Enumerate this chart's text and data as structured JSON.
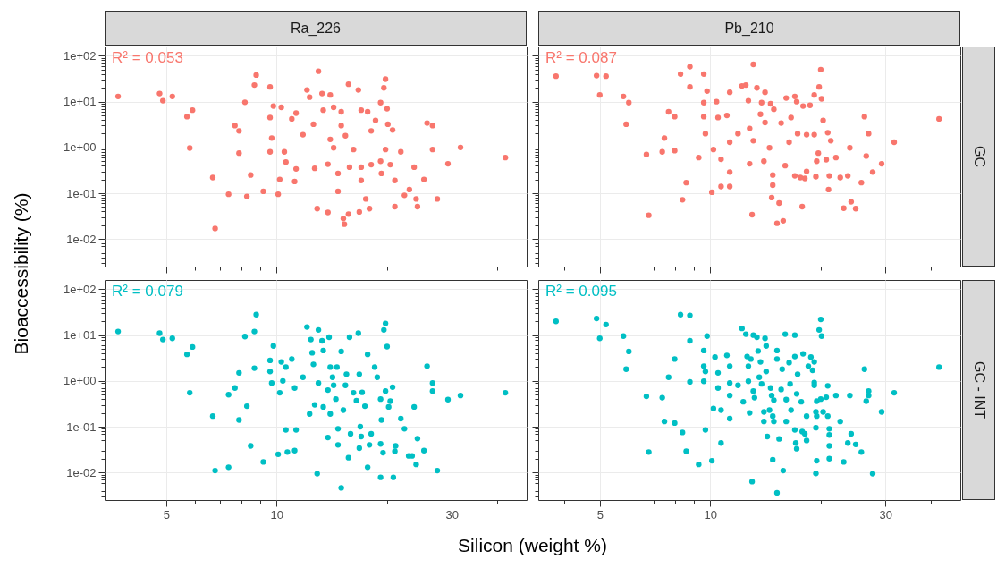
{
  "chart_data": [
    {
      "type": "scatter",
      "title": "Ra_226",
      "ylabel": "Bioaccessibility (%)",
      "annotations": [
        "R² = 0.053"
      ],
      "color": "#f8766d",
      "marker": "circle",
      "log": "xy",
      "grid": true,
      "tick_labels": "y",
      "xlim": [
        3.4,
        48
      ],
      "ylim": [
        0.0025,
        160
      ],
      "xticks": [
        {
          "value": 4,
          "label": null
        },
        5,
        {
          "value": 6,
          "label": null
        },
        {
          "value": 7,
          "label": null
        },
        {
          "value": 8,
          "label": null
        },
        {
          "value": 9,
          "label": null
        },
        10,
        {
          "value": 20,
          "label": null
        },
        30,
        {
          "value": 40,
          "label": null
        }
      ],
      "yticks": [
        {
          "value": 0.003,
          "label": null
        },
        {
          "value": 0.004,
          "label": null
        },
        {
          "value": 0.005,
          "label": null
        },
        {
          "value": 0.006,
          "label": null
        },
        {
          "value": 0.007,
          "label": null
        },
        {
          "value": 0.008,
          "label": null
        },
        {
          "value": 0.009,
          "label": null
        },
        {
          "value": 0.01,
          "label": "1e-02"
        },
        {
          "value": 0.02,
          "label": null
        },
        {
          "value": 0.03,
          "label": null
        },
        {
          "value": 0.04,
          "label": null
        },
        {
          "value": 0.05,
          "label": null
        },
        {
          "value": 0.06,
          "label": null
        },
        {
          "value": 0.07,
          "label": null
        },
        {
          "value": 0.08,
          "label": null
        },
        {
          "value": 0.09,
          "label": null
        },
        {
          "value": 0.1,
          "label": "1e-01"
        },
        {
          "value": 0.2,
          "label": null
        },
        {
          "value": 0.3,
          "label": null
        },
        {
          "value": 0.4,
          "label": null
        },
        {
          "value": 0.5,
          "label": null
        },
        {
          "value": 0.6,
          "label": null
        },
        {
          "value": 0.7,
          "label": null
        },
        {
          "value": 0.8,
          "label": null
        },
        {
          "value": 0.9,
          "label": null
        },
        {
          "value": 1,
          "label": "1e+00"
        },
        {
          "value": 2,
          "label": null
        },
        {
          "value": 3,
          "label": null
        },
        {
          "value": 4,
          "label": null
        },
        {
          "value": 5,
          "label": null
        },
        {
          "value": 6,
          "label": null
        },
        {
          "value": 7,
          "label": null
        },
        {
          "value": 8,
          "label": null
        },
        {
          "value": 9,
          "label": null
        },
        {
          "value": 10,
          "label": "1e+01"
        },
        {
          "value": 20,
          "label": null
        },
        {
          "value": 30,
          "label": null
        },
        {
          "value": 40,
          "label": null
        },
        {
          "value": 50,
          "label": null
        },
        {
          "value": 60,
          "label": null
        },
        {
          "value": 70,
          "label": null
        },
        {
          "value": 80,
          "label": null
        },
        {
          "value": 90,
          "label": null
        },
        {
          "value": 100,
          "label": "1e+02"
        }
      ],
      "x": [
        3.7,
        4.8,
        4.9,
        5.2,
        5.7,
        5.9,
        5.8,
        6.7,
        6.8,
        7.4,
        7.7,
        7.9,
        7.9,
        8.2,
        8.3,
        8.5,
        8.7,
        8.8,
        9.2,
        9.6,
        9.6,
        9.6,
        9.7,
        9.8,
        10.1,
        10.2,
        10.3,
        10.5,
        10.6,
        11.0,
        11.2,
        11.3,
        11.3,
        11.8,
        12.1,
        12.3,
        12.6,
        12.7,
        12.9,
        13.0,
        13.3,
        13.4,
        13.8,
        13.8,
        14.0,
        14.0,
        14.3,
        14.3,
        14.7,
        14.7,
        15.0,
        15.0,
        15.2,
        15.3,
        15.4,
        15.7,
        15.7,
        15.8,
        16.2,
        16.7,
        16.8,
        17.0,
        17.0,
        17.0,
        17.5,
        17.7,
        17.9,
        18.1,
        18.1,
        18.6,
        19.2,
        19.2,
        19.3,
        19.6,
        19.8,
        19.8,
        20.0,
        20.1,
        20.4,
        20.7,
        21,
        21,
        21.8,
        22.3,
        23.0,
        23.7,
        24,
        24.2,
        25.2,
        25.7,
        26.6,
        26.6,
        27.4,
        29.3,
        31.7,
        42
      ],
      "values": [
        13,
        15,
        10.5,
        13,
        4.7,
        6.5,
        0.97,
        0.22,
        0.017,
        0.095,
        3.0,
        2.3,
        0.75,
        9.7,
        0.085,
        0.25,
        23,
        38,
        0.11,
        21,
        4.5,
        0.8,
        1.6,
        8,
        0.095,
        0.2,
        7.5,
        0.8,
        0.48,
        4.2,
        0.18,
        5.6,
        0.34,
        1.9,
        18,
        12.5,
        3.2,
        0.35,
        0.046,
        46,
        15,
        6.5,
        0.43,
        0.038,
        14,
        1.5,
        7.5,
        0.98,
        0.11,
        0.27,
        6,
        3.0,
        0.028,
        0.021,
        1.8,
        0.035,
        24,
        0.37,
        0.9,
        18,
        0.039,
        6.5,
        0.37,
        0.19,
        0.075,
        6,
        0.046,
        2.3,
        0.42,
        3.9,
        9.5,
        0.5,
        0.27,
        20,
        31,
        0.9,
        7,
        3.2,
        0.42,
        2.4,
        0.051,
        0.19,
        0.8,
        0.09,
        0.12,
        0.37,
        0.075,
        0.051,
        0.2,
        3.4,
        3.0,
        0.9,
        0.075,
        0.44,
        1.0,
        0.6
      ]
    },
    {
      "type": "scatter",
      "title": "Pb_210",
      "y2label": "GC",
      "annotations": [
        "R² = 0.087"
      ],
      "color": "#f8766d",
      "marker": "circle",
      "log": "xy",
      "grid": true,
      "tick_labels": false,
      "xlim": [
        3.4,
        48
      ],
      "ylim": [
        0.0025,
        160
      ],
      "xticks": [
        {
          "value": 4,
          "label": null
        },
        5,
        {
          "value": 6,
          "label": null
        },
        {
          "value": 7,
          "label": null
        },
        {
          "value": 8,
          "label": null
        },
        {
          "value": 9,
          "label": null
        },
        10,
        {
          "value": 20,
          "label": null
        },
        30,
        {
          "value": 40,
          "label": null
        }
      ],
      "yticks": [
        {
          "value": 0.003,
          "label": null
        },
        {
          "value": 0.004,
          "label": null
        },
        {
          "value": 0.005,
          "label": null
        },
        {
          "value": 0.006,
          "label": null
        },
        {
          "value": 0.007,
          "label": null
        },
        {
          "value": 0.008,
          "label": null
        },
        {
          "value": 0.009,
          "label": null
        },
        0.01,
        {
          "value": 0.02,
          "label": null
        },
        {
          "value": 0.03,
          "label": null
        },
        {
          "value": 0.04,
          "label": null
        },
        {
          "value": 0.05,
          "label": null
        },
        {
          "value": 0.06,
          "label": null
        },
        {
          "value": 0.07,
          "label": null
        },
        {
          "value": 0.08,
          "label": null
        },
        {
          "value": 0.09,
          "label": null
        },
        0.1,
        {
          "value": 0.2,
          "label": null
        },
        {
          "value": 0.3,
          "label": null
        },
        {
          "value": 0.4,
          "label": null
        },
        {
          "value": 0.5,
          "label": null
        },
        {
          "value": 0.6,
          "label": null
        },
        {
          "value": 0.7,
          "label": null
        },
        {
          "value": 0.8,
          "label": null
        },
        {
          "value": 0.9,
          "label": null
        },
        1,
        {
          "value": 2,
          "label": null
        },
        {
          "value": 3,
          "label": null
        },
        {
          "value": 4,
          "label": null
        },
        {
          "value": 5,
          "label": null
        },
        {
          "value": 6,
          "label": null
        },
        {
          "value": 7,
          "label": null
        },
        {
          "value": 8,
          "label": null
        },
        {
          "value": 9,
          "label": null
        },
        10,
        {
          "value": 20,
          "label": null
        },
        {
          "value": 30,
          "label": null
        },
        {
          "value": 40,
          "label": null
        },
        {
          "value": 50,
          "label": null
        },
        {
          "value": 60,
          "label": null
        },
        {
          "value": 70,
          "label": null
        },
        {
          "value": 80,
          "label": null
        },
        {
          "value": 90,
          "label": null
        },
        100
      ],
      "x": [
        3.8,
        4.9,
        5.0,
        5.2,
        5.8,
        6.0,
        5.9,
        6.7,
        6.8,
        7.4,
        7.5,
        7.7,
        8.0,
        8.0,
        8.3,
        8.4,
        8.6,
        8.8,
        8.8,
        9.3,
        9.6,
        9.6,
        9.6,
        9.7,
        9.8,
        10.1,
        10.2,
        10.4,
        10.5,
        10.7,
        10.7,
        11.1,
        11.3,
        11.3,
        11.3,
        11.3,
        11.9,
        12.2,
        12.5,
        12.7,
        12.8,
        12.8,
        13.0,
        13.1,
        13.1,
        13.4,
        13.7,
        13.8,
        14.0,
        14.1,
        14.1,
        14.5,
        14.6,
        14.7,
        14.8,
        14.8,
        14.9,
        15.2,
        15.4,
        15.6,
        15.8,
        16.0,
        16.1,
        16.4,
        16.6,
        17.0,
        17.0,
        17.2,
        17.3,
        17.6,
        17.8,
        17.9,
        18.1,
        18.3,
        18.3,
        18.7,
        19.2,
        19.2,
        19.4,
        19.5,
        19.7,
        19.8,
        20.0,
        20.1,
        20.3,
        20.7,
        20.9,
        21,
        21.1,
        21.3,
        22,
        22.6,
        23.1,
        23.7,
        24,
        24.2,
        24.9,
        25.8,
        26.3,
        26.6,
        27,
        27.7,
        29.3,
        31.7,
        42
      ],
      "values": [
        36,
        37,
        14,
        36,
        13,
        9.5,
        3.2,
        0.7,
        0.033,
        0.8,
        1.6,
        6,
        4.7,
        0.85,
        40,
        0.072,
        0.17,
        58,
        21,
        0.6,
        40,
        9.5,
        4.7,
        2.0,
        17,
        0.105,
        0.9,
        10,
        4.5,
        0.55,
        0.14,
        5,
        1.3,
        16,
        0.29,
        0.14,
        2.0,
        22,
        23,
        10.5,
        0.44,
        2.6,
        0.034,
        65,
        1.4,
        20,
        5.3,
        9.5,
        0.5,
        16,
        3.5,
        0.98,
        9,
        0.08,
        0.25,
        0.15,
        6.8,
        0.022,
        0.061,
        3.4,
        0.025,
        0.4,
        12,
        1.3,
        4.5,
        0.24,
        13,
        10,
        2.0,
        0.22,
        0.051,
        8,
        0.21,
        0.3,
        1.9,
        8.3,
        14,
        1.9,
        0.23,
        0.5,
        0.75,
        21,
        50,
        11.5,
        3.9,
        0.54,
        2.1,
        0.12,
        0.24,
        1.4,
        0.6,
        0.22,
        0.047,
        0.24,
        0.98,
        0.065,
        0.046,
        0.17,
        4.7,
        0.65,
        2.0,
        0.29,
        0.44,
        1.3,
        4.2
      ]
    },
    {
      "type": "scatter",
      "xlabel": "Silicon (weight %)",
      "annotations": [
        "R² = 0.079"
      ],
      "color": "#00bfc4",
      "marker": "circle",
      "log": "xy",
      "grid": true,
      "xlim": [
        3.4,
        48
      ],
      "ylim": [
        0.0025,
        160
      ],
      "xticks": [
        {
          "value": 4,
          "label": null
        },
        5,
        {
          "value": 6,
          "label": null
        },
        {
          "value": 7,
          "label": null
        },
        {
          "value": 8,
          "label": null
        },
        {
          "value": 9,
          "label": null
        },
        10,
        {
          "value": 20,
          "label": null
        },
        30,
        {
          "value": 40,
          "label": null
        }
      ],
      "yticks": [
        {
          "value": 0.003,
          "label": null
        },
        {
          "value": 0.004,
          "label": null
        },
        {
          "value": 0.005,
          "label": null
        },
        {
          "value": 0.006,
          "label": null
        },
        {
          "value": 0.007,
          "label": null
        },
        {
          "value": 0.008,
          "label": null
        },
        {
          "value": 0.009,
          "label": null
        },
        {
          "value": 0.01,
          "label": "1e-02"
        },
        {
          "value": 0.02,
          "label": null
        },
        {
          "value": 0.03,
          "label": null
        },
        {
          "value": 0.04,
          "label": null
        },
        {
          "value": 0.05,
          "label": null
        },
        {
          "value": 0.06,
          "label": null
        },
        {
          "value": 0.07,
          "label": null
        },
        {
          "value": 0.08,
          "label": null
        },
        {
          "value": 0.09,
          "label": null
        },
        {
          "value": 0.1,
          "label": "1e-01"
        },
        {
          "value": 0.2,
          "label": null
        },
        {
          "value": 0.3,
          "label": null
        },
        {
          "value": 0.4,
          "label": null
        },
        {
          "value": 0.5,
          "label": null
        },
        {
          "value": 0.6,
          "label": null
        },
        {
          "value": 0.7,
          "label": null
        },
        {
          "value": 0.8,
          "label": null
        },
        {
          "value": 0.9,
          "label": null
        },
        {
          "value": 1,
          "label": "1e+00"
        },
        {
          "value": 2,
          "label": null
        },
        {
          "value": 3,
          "label": null
        },
        {
          "value": 4,
          "label": null
        },
        {
          "value": 5,
          "label": null
        },
        {
          "value": 6,
          "label": null
        },
        {
          "value": 7,
          "label": null
        },
        {
          "value": 8,
          "label": null
        },
        {
          "value": 9,
          "label": null
        },
        {
          "value": 10,
          "label": "1e+01"
        },
        {
          "value": 20,
          "label": null
        },
        {
          "value": 30,
          "label": null
        },
        {
          "value": 40,
          "label": null
        },
        {
          "value": 50,
          "label": null
        },
        {
          "value": 60,
          "label": null
        },
        {
          "value": 70,
          "label": null
        },
        {
          "value": 80,
          "label": null
        },
        {
          "value": 90,
          "label": null
        },
        {
          "value": 100,
          "label": "1e+02"
        }
      ],
      "x": [
        3.7,
        4.8,
        4.9,
        5.2,
        5.7,
        5.9,
        5.8,
        6.7,
        6.8,
        7.4,
        7.4,
        7.7,
        7.9,
        7.9,
        8.2,
        8.3,
        8.5,
        8.7,
        8.7,
        8.8,
        9.2,
        9.6,
        9.6,
        9.7,
        9.8,
        10.1,
        10.2,
        10.3,
        10.4,
        10.6,
        10.6,
        10.7,
        11.0,
        11.2,
        11.2,
        11.3,
        11.8,
        12.1,
        12.3,
        12.4,
        12.5,
        12.6,
        12.7,
        12.9,
        13.0,
        13.0,
        13.3,
        13.4,
        13.4,
        13.8,
        13.8,
        13.9,
        14.0,
        14.0,
        14.2,
        14.3,
        14.5,
        14.6,
        14.7,
        14.7,
        15.0,
        15.0,
        15.2,
        15.4,
        15.5,
        15.7,
        15.8,
        15.9,
        16.2,
        16.5,
        16.7,
        16.8,
        16.8,
        16.9,
        17.0,
        17.1,
        17.4,
        17.7,
        17.7,
        17.9,
        18.1,
        18.5,
        18.8,
        19.2,
        19.2,
        19.2,
        19.3,
        19.5,
        19.6,
        19.8,
        19.8,
        20.0,
        20.2,
        20.4,
        20.7,
        20.8,
        21,
        21.1,
        21.8,
        22.3,
        22.9,
        23.4,
        23.7,
        24,
        24.2,
        25.2,
        25.7,
        26.6,
        26.6,
        27.4,
        29.3,
        31.7,
        42
      ],
      "values": [
        12,
        11,
        8,
        8.5,
        3.8,
        5.5,
        0.55,
        0.17,
        0.011,
        0.013,
        0.5,
        0.7,
        1.5,
        0.14,
        9.3,
        0.28,
        0.038,
        1.9,
        12,
        28,
        0.017,
        2.8,
        1.6,
        0.9,
        5.8,
        0.025,
        0.55,
        2.6,
        1.0,
        2.0,
        0.085,
        0.028,
        3.0,
        0.7,
        0.03,
        0.085,
        1.2,
        15,
        0.19,
        8,
        4.1,
        2.3,
        0.3,
        0.0094,
        13,
        0.9,
        7.5,
        4.6,
        0.27,
        0.63,
        0.058,
        9,
        2.0,
        0.19,
        1.2,
        0.8,
        0.4,
        2.0,
        0.09,
        0.04,
        4.4,
        0.0046,
        0.23,
        0.8,
        1.4,
        0.021,
        9,
        0.07,
        0.55,
        0.37,
        11,
        1.4,
        0.034,
        0.1,
        0.061,
        0.56,
        0.28,
        3.8,
        0.013,
        0.04,
        0.07,
        2.0,
        1.2,
        0.4,
        0.042,
        0.0078,
        0.14,
        0.027,
        13,
        18,
        0.6,
        5.6,
        0.27,
        0.36,
        0.73,
        0.0078,
        0.029,
        0.038,
        0.15,
        0.09,
        0.023,
        0.023,
        0.27,
        0.015,
        0.055,
        0.03,
        2.1,
        0.9,
        0.6,
        0.011,
        0.39,
        0.48,
        0.55
      ]
    },
    {
      "type": "scatter",
      "y2label": "GC - INT",
      "annotations": [
        "R² = 0.095"
      ],
      "color": "#00bfc4",
      "marker": "circle",
      "log": "xy",
      "grid": true,
      "tick_labels": "x",
      "xlim": [
        3.4,
        48
      ],
      "ylim": [
        0.0025,
        160
      ],
      "xticks": [
        {
          "value": 4,
          "label": null
        },
        5,
        {
          "value": 6,
          "label": null
        },
        {
          "value": 7,
          "label": null
        },
        {
          "value": 8,
          "label": null
        },
        {
          "value": 9,
          "label": null
        },
        10,
        {
          "value": 20,
          "label": null
        },
        30,
        {
          "value": 40,
          "label": null
        }
      ],
      "yticks": [
        {
          "value": 0.003,
          "label": null
        },
        {
          "value": 0.004,
          "label": null
        },
        {
          "value": 0.005,
          "label": null
        },
        {
          "value": 0.006,
          "label": null
        },
        {
          "value": 0.007,
          "label": null
        },
        {
          "value": 0.008,
          "label": null
        },
        {
          "value": 0.009,
          "label": null
        },
        0.01,
        {
          "value": 0.02,
          "label": null
        },
        {
          "value": 0.03,
          "label": null
        },
        {
          "value": 0.04,
          "label": null
        },
        {
          "value": 0.05,
          "label": null
        },
        {
          "value": 0.06,
          "label": null
        },
        {
          "value": 0.07,
          "label": null
        },
        {
          "value": 0.08,
          "label": null
        },
        {
          "value": 0.09,
          "label": null
        },
        0.1,
        {
          "value": 0.2,
          "label": null
        },
        {
          "value": 0.3,
          "label": null
        },
        {
          "value": 0.4,
          "label": null
        },
        {
          "value": 0.5,
          "label": null
        },
        {
          "value": 0.6,
          "label": null
        },
        {
          "value": 0.7,
          "label": null
        },
        {
          "value": 0.8,
          "label": null
        },
        {
          "value": 0.9,
          "label": null
        },
        1,
        {
          "value": 2,
          "label": null
        },
        {
          "value": 3,
          "label": null
        },
        {
          "value": 4,
          "label": null
        },
        {
          "value": 5,
          "label": null
        },
        {
          "value": 6,
          "label": null
        },
        {
          "value": 7,
          "label": null
        },
        {
          "value": 8,
          "label": null
        },
        {
          "value": 9,
          "label": null
        },
        10,
        {
          "value": 20,
          "label": null
        },
        {
          "value": 30,
          "label": null
        },
        {
          "value": 40,
          "label": null
        },
        {
          "value": 50,
          "label": null
        },
        {
          "value": 60,
          "label": null
        },
        {
          "value": 70,
          "label": null
        },
        {
          "value": 80,
          "label": null
        },
        {
          "value": 90,
          "label": null
        },
        100
      ],
      "x": [
        3.8,
        4.9,
        5.0,
        5.2,
        5.8,
        6.0,
        5.9,
        6.7,
        6.8,
        7.4,
        7.5,
        7.7,
        8.0,
        8.0,
        8.3,
        8.4,
        8.6,
        8.8,
        8.8,
        8.8,
        9.3,
        9.6,
        9.6,
        9.7,
        9.7,
        9.6,
        9.8,
        10.1,
        10.2,
        10.3,
        10.5,
        10.5,
        10.7,
        10.7,
        11.1,
        11.3,
        11.3,
        11.3,
        11.3,
        11.9,
        12.2,
        12.3,
        12.5,
        12.6,
        12.7,
        12.7,
        12.8,
        12.9,
        13.0,
        13.1,
        13.1,
        13.2,
        13.4,
        13.5,
        13.6,
        13.7,
        13.8,
        14.0,
        14.0,
        14.1,
        14.2,
        14.2,
        14.3,
        14.5,
        14.6,
        14.7,
        14.8,
        14.8,
        14.9,
        14.9,
        15.2,
        15.2,
        15.2,
        15.4,
        15.6,
        15.7,
        15.8,
        16.0,
        16.1,
        16.1,
        16.4,
        16.5,
        16.6,
        17.0,
        17.0,
        17.0,
        17.1,
        17.2,
        17.2,
        17.3,
        17.7,
        17.8,
        17.9,
        18.1,
        18.3,
        18.3,
        18.5,
        18.8,
        19.0,
        19.2,
        19.2,
        19.2,
        19.4,
        19.4,
        19.4,
        19.5,
        19.5,
        19.5,
        19.8,
        20.0,
        20.1,
        20.0,
        20.3,
        20.7,
        20.9,
        20.9,
        21.1,
        21.1,
        21.1,
        21.1,
        22,
        22.6,
        23.1,
        23.7,
        24,
        24.2,
        24.9,
        25.8,
        26.3,
        26.6,
        27,
        27,
        27.7,
        29.3,
        31.7,
        42
      ],
      "values": [
        20,
        23,
        8.5,
        17,
        9.5,
        4.4,
        1.8,
        0.46,
        0.028,
        0.43,
        0.13,
        1.2,
        3.0,
        0.12,
        28,
        0.075,
        0.029,
        27,
        7.5,
        0.95,
        0.015,
        4.6,
        2.1,
        1.6,
        0.085,
        0.98,
        9.5,
        0.018,
        0.25,
        3.3,
        1.5,
        0.7,
        0.044,
        0.23,
        3.6,
        0.9,
        0.15,
        0.48,
        2.1,
        0.8,
        14,
        0.35,
        10.5,
        3.4,
        0.98,
        2.1,
        0.2,
        3.0,
        0.0063,
        10,
        0.6,
        0.43,
        9,
        4.5,
        1.2,
        2.6,
        0.86,
        0.21,
        0.13,
        8.5,
        5.8,
        1.6,
        0.061,
        0.23,
        0.7,
        0.48,
        0.17,
        0.019,
        0.13,
        0.38,
        4.6,
        3.0,
        0.0036,
        0.054,
        0.65,
        1.8,
        0.011,
        10.5,
        0.39,
        0.13,
        2.5,
        0.86,
        0.23,
        10,
        3.4,
        0.085,
        0.044,
        0.033,
        0.52,
        1.4,
        0.35,
        0.078,
        3.9,
        0.07,
        0.17,
        0.05,
        2.1,
        3.3,
        1.7,
        2.6,
        0.92,
        0.8,
        0.095,
        0.0095,
        0.21,
        0.36,
        0.018,
        0.17,
        13,
        22,
        9.5,
        0.4,
        0.21,
        0.44,
        0.78,
        0.17,
        0.09,
        0.066,
        0.038,
        0.02,
        0.48,
        0.13,
        0.017,
        0.044,
        0.48,
        0.07,
        0.041,
        0.028,
        1.8,
        0.36,
        0.6,
        0.48,
        0.0094,
        0.21,
        0.55,
        2.0
      ]
    }
  ]
}
